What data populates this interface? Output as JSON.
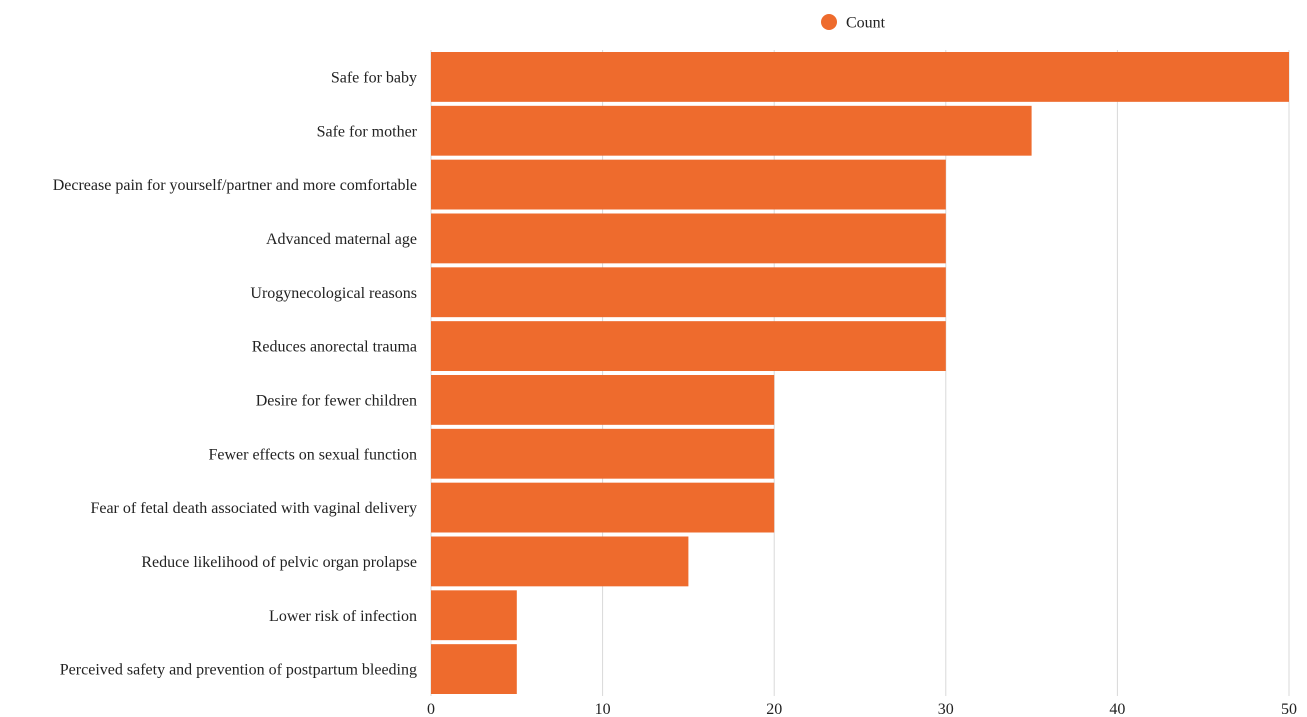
{
  "chart_data": {
    "type": "bar",
    "orientation": "horizontal",
    "categories": [
      "Safe for baby",
      "Safe for mother",
      "Decrease pain for yourself/partner and more comfortable",
      "Advanced maternal age",
      "Urogynecological reasons",
      "Reduces anorectal trauma",
      "Desire for fewer children",
      "Fewer effects on sexual function",
      "Fear of fetal death associated with vaginal delivery",
      "Reduce likelihood of pelvic organ prolapse",
      "Lower risk of infection",
      "Perceived safety and prevention of postpartum bleeding"
    ],
    "series": [
      {
        "name": "Count",
        "color": "#ee6b2d",
        "values": [
          50,
          35,
          30,
          30,
          30,
          30,
          20,
          20,
          20,
          15,
          5,
          5
        ]
      }
    ],
    "xlim": [
      0,
      50
    ],
    "xticks": [
      0,
      10,
      20,
      30,
      40,
      50
    ],
    "grid": "vertical",
    "legend_position": "top-center",
    "title": "",
    "xlabel": "",
    "ylabel": ""
  }
}
